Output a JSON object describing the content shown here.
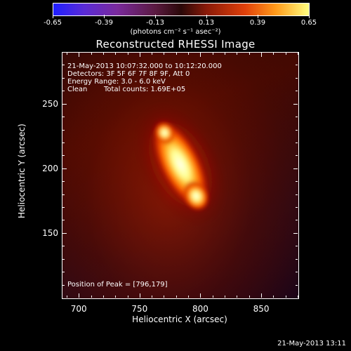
{
  "colorbar": {
    "tick_labels": [
      "-0.65",
      "-0.39",
      "-0.13",
      "0.13",
      "0.39",
      "0.65"
    ],
    "unit_label": "(photons cm⁻² s⁻¹ asec⁻²)",
    "range": [
      -0.65,
      0.65
    ],
    "colormap_colors": [
      "#1f1fff",
      "#7a2a9c",
      "#2a0808",
      "#e0400a",
      "#ffff80"
    ]
  },
  "title": "Reconstructed RHESSI Image",
  "info": {
    "time_range": "21-May-2013 10:07:32.000 to 10:12:20.000",
    "detectors": "Detectors: 3F 5F 6F 7F 8F 9F, Att 0",
    "energy": "Energy Range: 3.0 - 6.0 keV",
    "clean": "Clean",
    "total_counts": "Total counts: 1.69E+05"
  },
  "peak_text": "Position of Peak = [796,179]",
  "axes": {
    "xlabel": "Heliocentric X (arcsec)",
    "ylabel": "Heliocentric Y (arcsec)",
    "xticks": [
      "700",
      "750",
      "800",
      "850"
    ],
    "yticks": [
      "150",
      "200",
      "250"
    ],
    "xlim": [
      686,
      880
    ],
    "ylim": [
      100,
      290
    ]
  },
  "source": {
    "peak": [
      796,
      179
    ],
    "upper_end": [
      770,
      228
    ]
  },
  "timestamp": "21-May-2013 13:11"
}
